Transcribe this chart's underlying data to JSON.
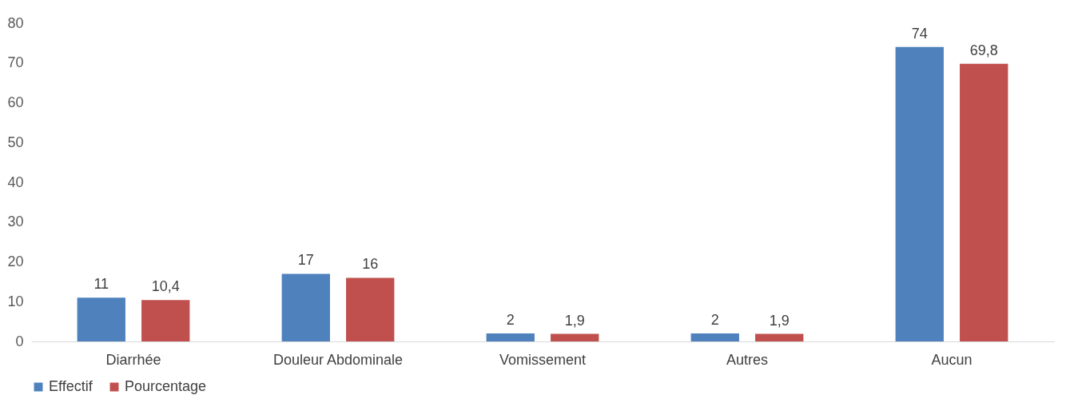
{
  "chart_data": {
    "type": "bar",
    "categories": [
      "Diarrhée",
      "Douleur Abdominale",
      "Vomissement",
      "Autres",
      "Aucun"
    ],
    "series": [
      {
        "name": "Effectif",
        "color": "#4f81bd",
        "values": [
          11,
          17,
          2,
          2,
          74
        ],
        "value_labels": [
          "11",
          "17",
          "2",
          "2",
          "74"
        ]
      },
      {
        "name": "Pourcentage",
        "color": "#c0504d",
        "values": [
          10.4,
          16,
          1.9,
          1.9,
          69.8
        ],
        "value_labels": [
          "10,4",
          "16",
          "1,9",
          "1,9",
          "69,8"
        ]
      }
    ],
    "ylim": [
      0,
      80
    ],
    "yticks": [
      0,
      10,
      20,
      30,
      40,
      50,
      60,
      70,
      80
    ],
    "grid": false,
    "legend": "bottom"
  }
}
